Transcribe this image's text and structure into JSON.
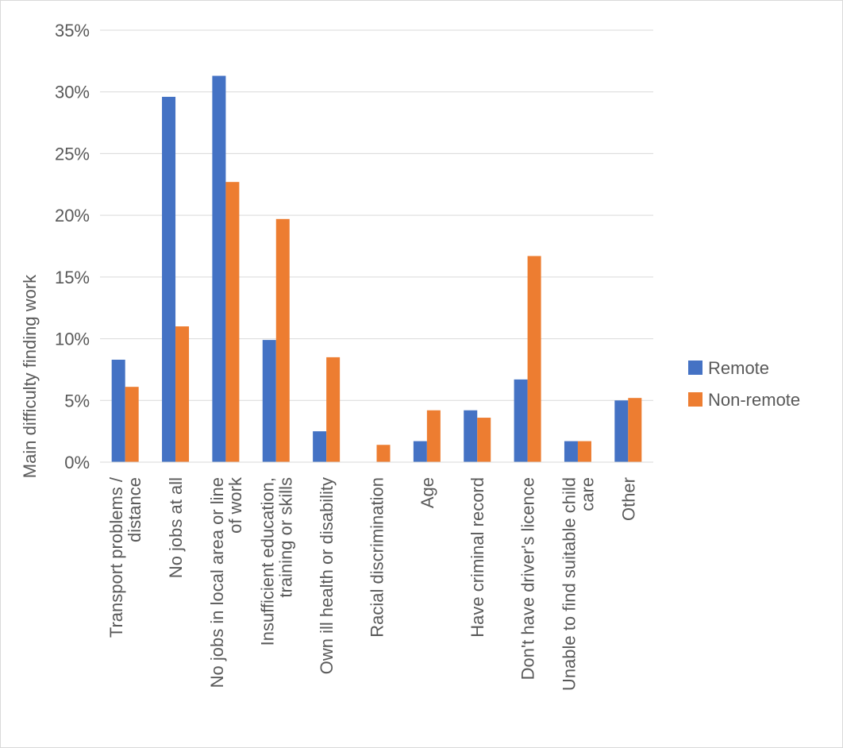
{
  "chart_data": {
    "type": "bar",
    "title": "",
    "xlabel": "",
    "ylabel": "Main difficulty finding work",
    "ylim": [
      0,
      35
    ],
    "y_ticks": [
      0,
      5,
      10,
      15,
      20,
      25,
      30,
      35
    ],
    "y_tick_format": "percent",
    "grid": true,
    "legend_position": "right",
    "categories": [
      [
        "Transport problems /",
        "distance"
      ],
      [
        "No jobs at all"
      ],
      [
        "No jobs in local area or line",
        "of work"
      ],
      [
        "Insufficient education,",
        "training or skills"
      ],
      [
        "Own ill health or disability"
      ],
      [
        "Racial discrimination"
      ],
      [
        "Age"
      ],
      [
        "Have criminal record"
      ],
      [
        "Don't have driver's licence"
      ],
      [
        "Unable to find suitable child",
        "care"
      ],
      [
        "Other"
      ]
    ],
    "series": [
      {
        "name": "Remote",
        "color": "#4472c4",
        "values": [
          8.3,
          29.6,
          31.3,
          9.9,
          2.5,
          0,
          1.7,
          4.2,
          6.7,
          1.7,
          5.0
        ]
      },
      {
        "name": "Non-remote",
        "color": "#ed7d31",
        "values": [
          6.1,
          11.0,
          22.7,
          19.7,
          8.5,
          1.4,
          4.2,
          3.6,
          16.7,
          1.7,
          5.2
        ]
      }
    ]
  }
}
